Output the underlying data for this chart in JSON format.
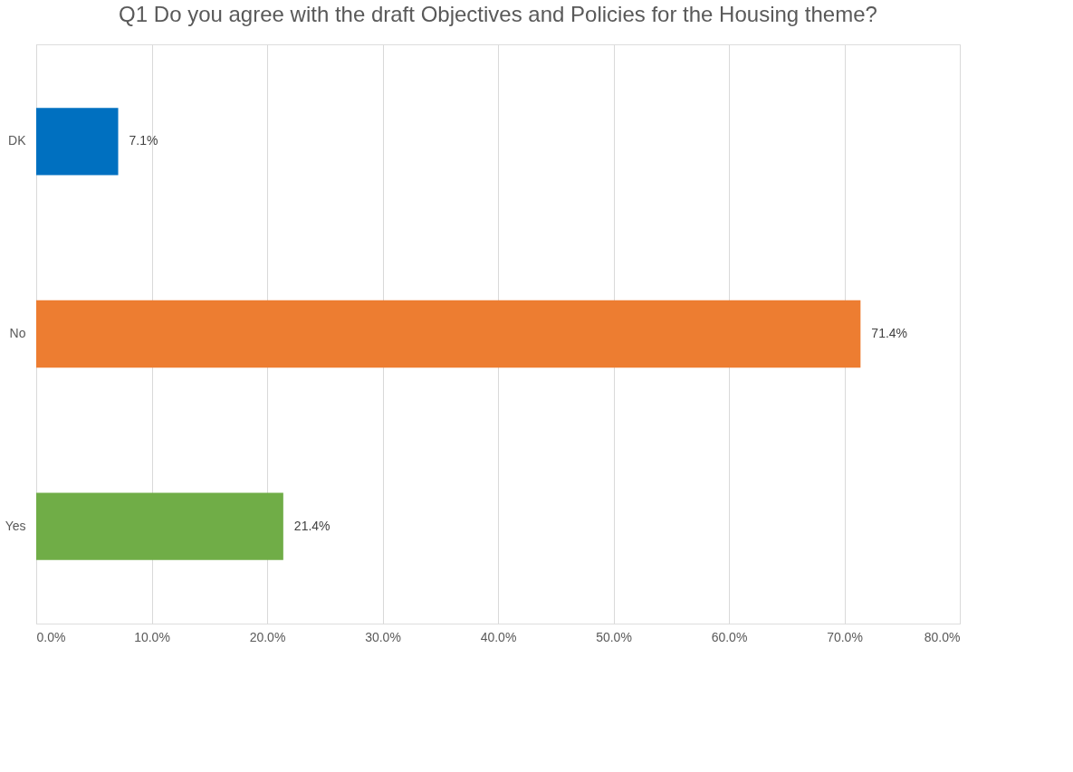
{
  "chart_data": {
    "type": "bar",
    "orientation": "horizontal",
    "title": "Q1 Do you agree with the draft Objectives and Policies for the Housing theme?",
    "categories": [
      "DK",
      "No",
      "Yes"
    ],
    "values": [
      7.1,
      71.4,
      21.4
    ],
    "colors": [
      "#0070c0",
      "#ed7d31",
      "#70ad47"
    ],
    "value_labels": [
      "7.1%",
      "71.4%",
      "21.4%"
    ],
    "xlim": [
      0,
      80
    ],
    "xticks": [
      {
        "value": 0,
        "label": "0.0%"
      },
      {
        "value": 10,
        "label": "10.0%"
      },
      {
        "value": 20,
        "label": "20.0%"
      },
      {
        "value": 30,
        "label": "30.0%"
      },
      {
        "value": 40,
        "label": "40.0%"
      },
      {
        "value": 50,
        "label": "50.0%"
      },
      {
        "value": 60,
        "label": "60.0%"
      },
      {
        "value": 70,
        "label": "70.0%"
      },
      {
        "value": 80,
        "label": "80.0%"
      }
    ],
    "grid": "x"
  }
}
